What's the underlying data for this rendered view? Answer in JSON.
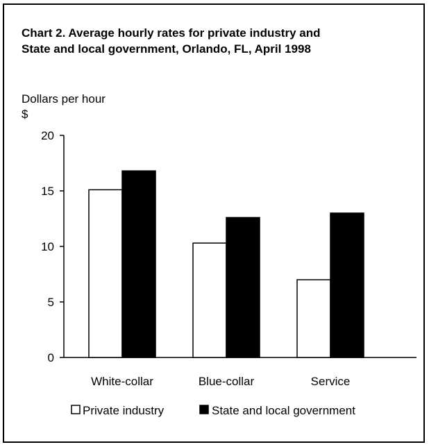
{
  "chart_data": {
    "type": "bar",
    "title": "Chart 2. Average hourly rates for private industry and State and local government, Orlando, FL, April 1998",
    "title_lines": [
      "Chart 2. Average hourly rates for private industry and",
      "State and local government, Orlando, FL, April 1998"
    ],
    "ylabel": "Dollars per hour",
    "ylabel_unit": "$",
    "categories": [
      "White-collar",
      "Blue-collar",
      "Service"
    ],
    "series": [
      {
        "name": "Private industry",
        "values": [
          15.1,
          10.3,
          7.0
        ],
        "color": "#ffffff"
      },
      {
        "name": "State and local government",
        "values": [
          16.8,
          12.6,
          13.0
        ],
        "color": "#000000"
      }
    ],
    "ylim": [
      0,
      20
    ],
    "yticks": [
      "0",
      "5",
      "10",
      "15",
      "20"
    ],
    "grid": false,
    "legend": "bottom"
  }
}
